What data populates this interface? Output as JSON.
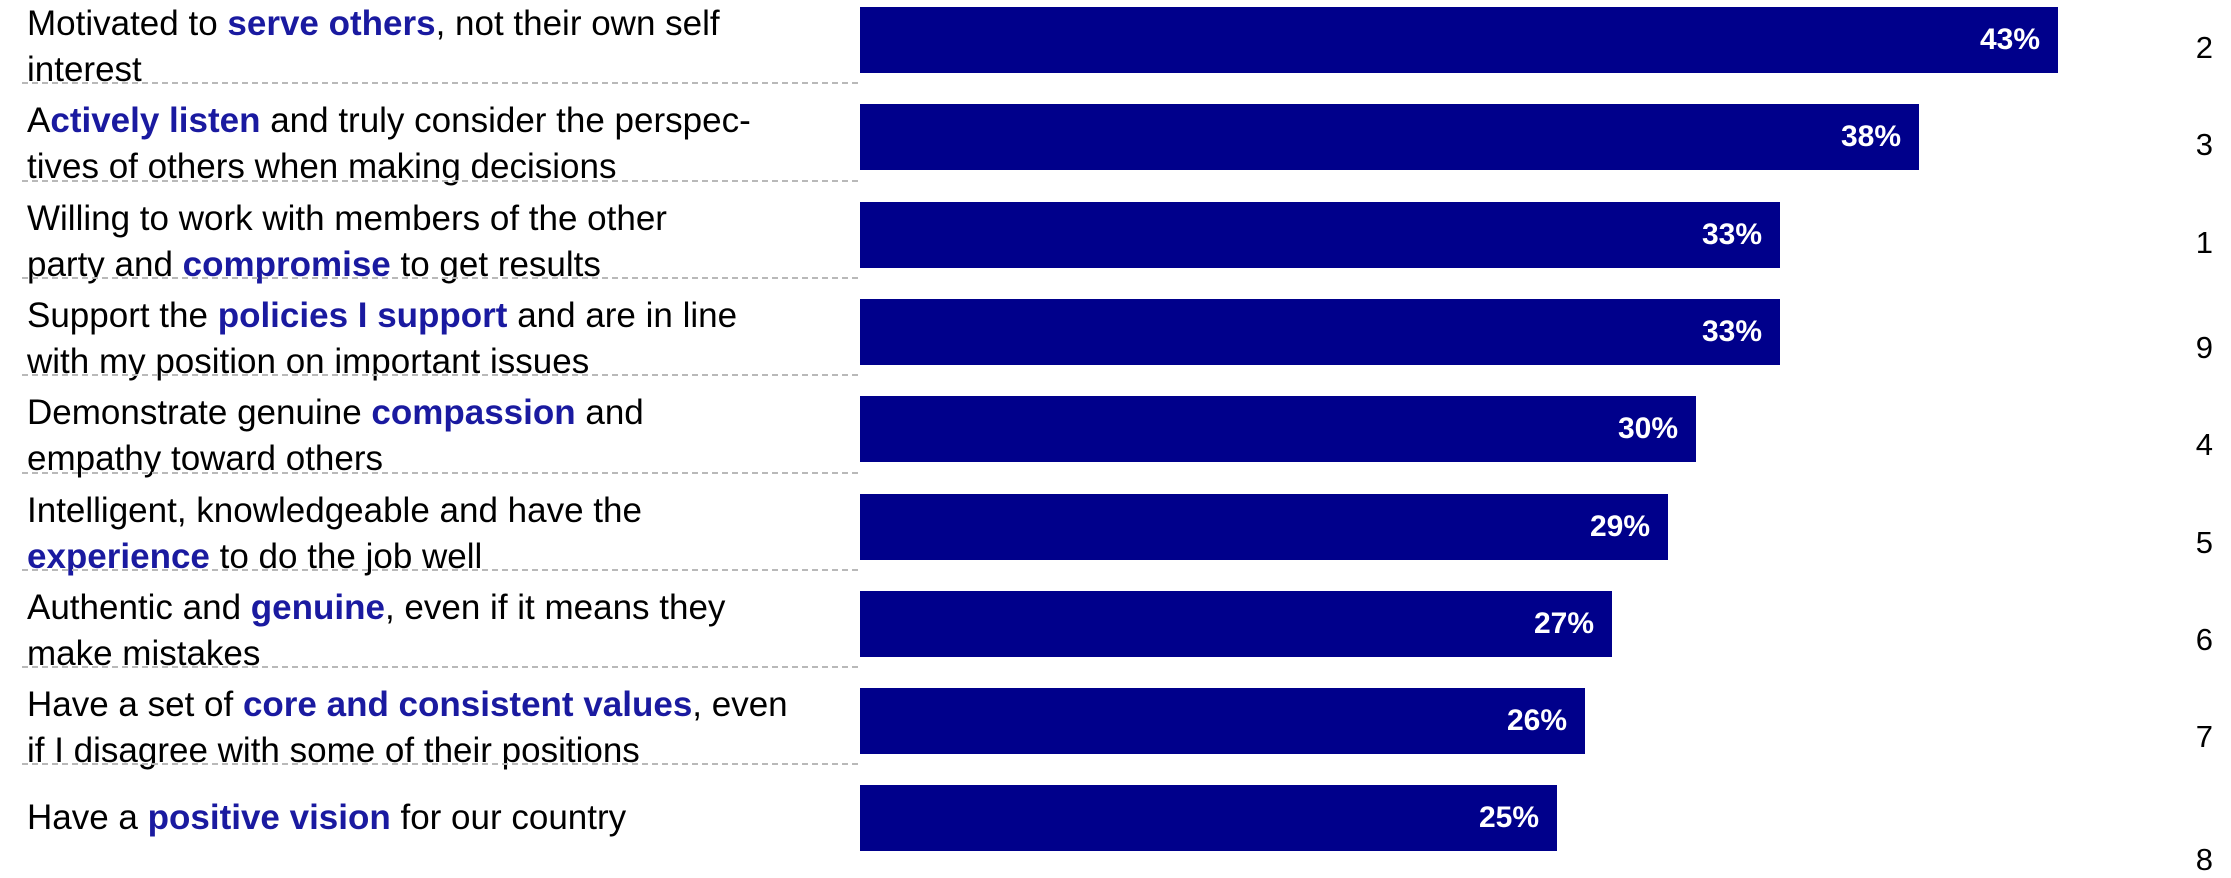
{
  "colors": {
    "bar": "#00008b",
    "highlight": "#1a1aa0",
    "bar_text": "#ffffff",
    "divider": "#b9b9b9"
  },
  "chart_data": {
    "type": "bar",
    "orientation": "horizontal",
    "grid": false,
    "legend": "none",
    "xlim": [
      0,
      50
    ],
    "categories": [
      "Motivated to serve others, not their own self interest",
      "Actively listen and truly consider the perspec-tives of others when making decisions",
      "Willing to work with members of the other party and compromise to get results",
      "Support the policies I support and are in line with my position on important issues",
      "Demonstrate genuine compassion and empathy toward others",
      "Intelligent, knowledgeable and have the experience to do the job well",
      "Authentic and genuine, even if it means they make mistakes",
      "Have a set of core and consistent values, even if I disagree with some of their positions",
      "Have a positive vision for our country"
    ],
    "values": [
      43,
      38,
      33,
      33,
      30,
      29,
      27,
      26,
      25
    ],
    "value_labels": [
      "43%",
      "38%",
      "33%",
      "33%",
      "30%",
      "29%",
      "27%",
      "26%",
      "25%"
    ],
    "ranks": [
      "2",
      "3",
      "1",
      "9",
      "4",
      "5",
      "6",
      "7",
      "8"
    ],
    "label_parts": [
      [
        {
          "text": "Motivated to ",
          "b": false
        },
        {
          "text": "serve others",
          "b": true
        },
        {
          "text": ", not their own self\ninterest",
          "b": false
        }
      ],
      [
        {
          "text": "A",
          "b": false
        },
        {
          "text": "ctively listen",
          "b": true
        },
        {
          "text": " and truly consider the perspec-\ntives of others when making decisions",
          "b": false
        }
      ],
      [
        {
          "text": "Willing to work with members of the other\nparty and ",
          "b": false
        },
        {
          "text": "compromise",
          "b": true
        },
        {
          "text": " to get results",
          "b": false
        }
      ],
      [
        {
          "text": "Support the ",
          "b": false
        },
        {
          "text": "policies I support",
          "b": true
        },
        {
          "text": " and are in line\nwith my position on important issues",
          "b": false
        }
      ],
      [
        {
          "text": "Demonstrate genuine ",
          "b": false
        },
        {
          "text": "compassion",
          "b": true
        },
        {
          "text": " and\nempathy toward others",
          "b": false
        }
      ],
      [
        {
          "text": "Intelligent, knowledgeable and have the\n",
          "b": false
        },
        {
          "text": "experience",
          "b": true
        },
        {
          "text": " to do the job well",
          "b": false
        }
      ],
      [
        {
          "text": "Authentic and ",
          "b": false
        },
        {
          "text": "genuine",
          "b": true
        },
        {
          "text": ", even if it means they\nmake mistakes",
          "b": false
        }
      ],
      [
        {
          "text": "Have a set of ",
          "b": false
        },
        {
          "text": "core and consistent values",
          "b": true
        },
        {
          "text": ", even\nif I disagree with some of their positions",
          "b": false
        }
      ],
      [
        {
          "text": "Have a ",
          "b": false
        },
        {
          "text": "positive vision",
          "b": true
        },
        {
          "text": " for our country",
          "b": false
        }
      ]
    ]
  }
}
